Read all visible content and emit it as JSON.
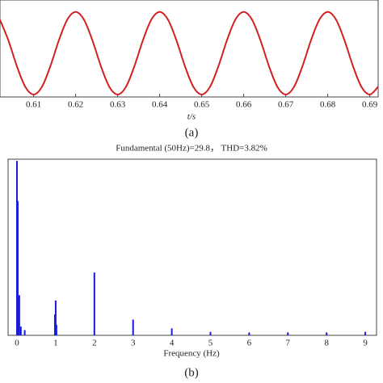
{
  "chart_data": [
    {
      "type": "line",
      "x_label": "t/s",
      "caption": "(a)",
      "xlim": [
        0.602,
        0.692
      ],
      "xticks": [
        0.61,
        0.62,
        0.63,
        0.64,
        0.65,
        0.66,
        0.67,
        0.68,
        0.69
      ],
      "ylim": [
        -1.06,
        1.29
      ],
      "series": [
        {
          "color": "#d42020",
          "x": [
            0.602,
            0.604,
            0.606,
            0.608,
            0.61,
            0.612,
            0.614,
            0.616,
            0.618,
            0.62,
            0.622,
            0.624,
            0.626,
            0.628,
            0.63,
            0.632,
            0.634,
            0.636,
            0.638,
            0.64,
            0.642,
            0.644,
            0.646,
            0.648,
            0.65,
            0.652,
            0.654,
            0.656,
            0.658,
            0.66,
            0.662,
            0.664,
            0.666,
            0.668,
            0.67,
            0.672,
            0.674,
            0.676,
            0.678,
            0.68,
            0.682,
            0.684,
            0.686,
            0.688,
            0.69,
            0.692
          ],
          "values": [
            0.81,
            0.31,
            -0.31,
            -0.81,
            -1,
            -0.81,
            -0.31,
            0.31,
            0.81,
            1,
            0.81,
            0.31,
            -0.31,
            -0.81,
            -1,
            -0.81,
            -0.31,
            0.31,
            0.81,
            1,
            0.81,
            0.31,
            -0.31,
            -0.81,
            -1,
            -0.81,
            -0.31,
            0.31,
            0.81,
            1,
            0.81,
            0.31,
            -0.31,
            -0.81,
            -1,
            -0.81,
            -0.31,
            0.31,
            0.81,
            1,
            0.81,
            0.31,
            -0.31,
            -0.81,
            -1,
            -0.81
          ]
        }
      ]
    },
    {
      "type": "stem",
      "title": "Fundamental (50Hz)=29.8，  THD=3.82%",
      "x_label": "Frequency (Hz)",
      "caption": "(b)",
      "xlim": [
        -0.23,
        9.29
      ],
      "xticks": [
        0,
        1,
        2,
        3,
        4,
        5,
        6,
        7,
        8,
        9
      ],
      "ylim": [
        0,
        1.01
      ],
      "series": [
        {
          "color": "#1a1adb",
          "x": [
            0,
            0.02,
            0.06,
            0.1,
            0.2,
            0.98,
            1,
            1.02,
            2,
            3,
            4,
            5,
            6,
            7,
            8,
            9
          ],
          "values": [
            1.0,
            0.77,
            0.23,
            0.05,
            0.03,
            0.12,
            0.2,
            0.06,
            0.36,
            0.09,
            0.04,
            0.02,
            0.015,
            0.015,
            0.015,
            0.02
          ]
        }
      ]
    }
  ]
}
